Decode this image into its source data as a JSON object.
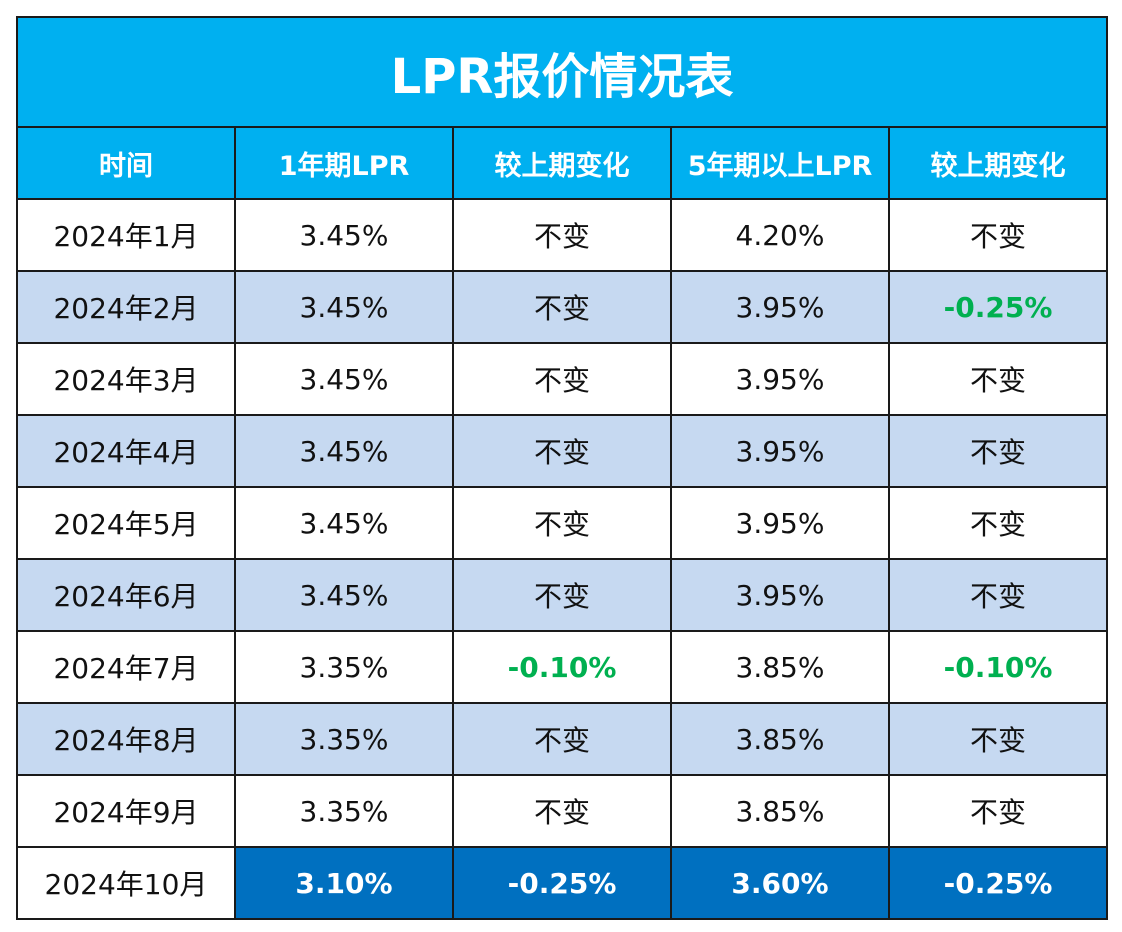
{
  "title": "LPR报价情况表",
  "headers": [
    "时间",
    "1年期LPR",
    "较上期变化",
    "5年期以上LPR",
    "较上期变化"
  ],
  "rows": [
    [
      "2024年1月",
      "3.45%",
      "不变",
      "4.20%",
      "不变"
    ],
    [
      "2024年2月",
      "3.45%",
      "不变",
      "3.95%",
      "-0.25%"
    ],
    [
      "2024年3月",
      "3.45%",
      "不变",
      "3.95%",
      "不变"
    ],
    [
      "2024年4月",
      "3.45%",
      "不变",
      "3.95%",
      "不变"
    ],
    [
      "2024年5月",
      "3.45%",
      "不变",
      "3.95%",
      "不变"
    ],
    [
      "2024年6月",
      "3.45%",
      "不变",
      "3.95%",
      "不变"
    ],
    [
      "2024年7月",
      "3.35%",
      "-0.10%",
      "3.85%",
      "-0.10%"
    ],
    [
      "2024年8月",
      "3.35%",
      "不变",
      "3.85%",
      "不变"
    ],
    [
      "2024年9月",
      "3.35%",
      "不变",
      "3.85%",
      "不变"
    ],
    [
      "2024年10月",
      "3.10%",
      "-0.25%",
      "3.60%",
      "-0.25%"
    ]
  ],
  "colors": {
    "title_background": "#00b0f0",
    "even_row_background": "#c6d9f1",
    "decrease_text": "#00b050",
    "latest_highlight": "#0070c0"
  }
}
